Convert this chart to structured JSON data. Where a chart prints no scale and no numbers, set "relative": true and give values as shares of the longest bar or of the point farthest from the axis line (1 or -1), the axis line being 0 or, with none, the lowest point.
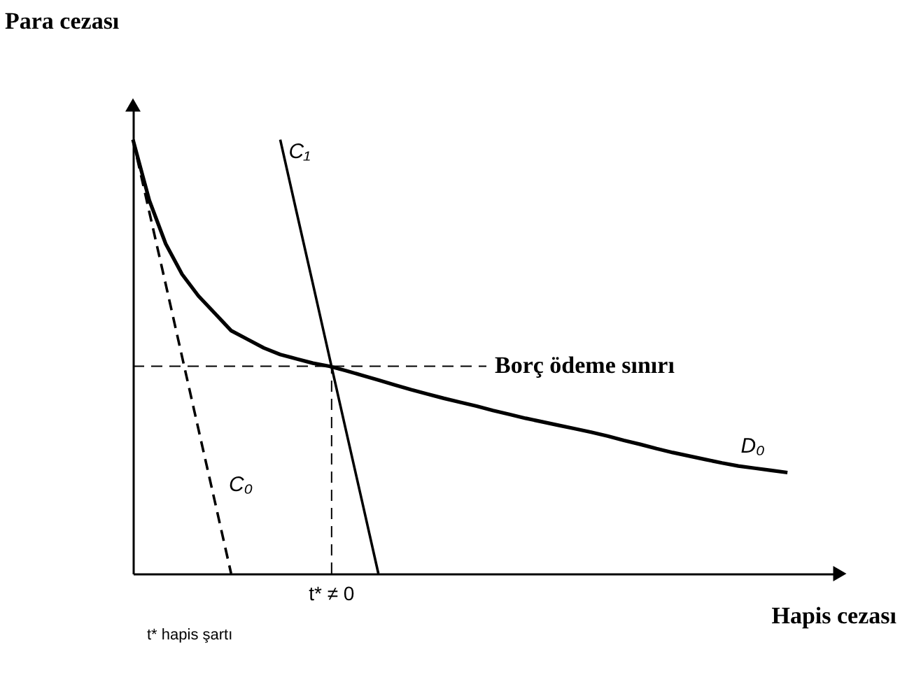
{
  "chart_data": {
    "type": "line",
    "relative": true,
    "xlabel": "Hapis cezası",
    "ylabel": "Para cezası",
    "legend": false,
    "marker": "none",
    "categories": [
      null,
      null,
      null,
      null,
      null,
      null,
      null,
      null,
      null,
      null,
      null,
      null,
      null,
      null,
      null,
      null,
      null,
      null,
      null,
      null,
      null,
      null,
      null,
      null,
      null,
      null,
      null,
      null,
      null,
      null,
      null,
      null,
      null,
      null,
      null,
      null,
      null,
      null,
      null,
      null,
      null
    ],
    "series": [
      {
        "name": "D₀",
        "color": "#000000",
        "line_style": "solid",
        "values": [
          1,
          0.86,
          0.76,
          0.69,
          0.64,
          0.6,
          0.56,
          0.54,
          0.52,
          0.505,
          0.495,
          0.485,
          0.478,
          0.468,
          0.457,
          0.446,
          0.435,
          0.424,
          0.414,
          0.404,
          0.395,
          0.386,
          0.376,
          0.367,
          0.358,
          0.35,
          0.342,
          0.334,
          0.326,
          0.317,
          0.307,
          0.298,
          0.288,
          0.279,
          0.271,
          0.263,
          0.255,
          0.248,
          0.243,
          0.238,
          0.233
        ]
      },
      {
        "name": "C₀",
        "color": "#000000",
        "line_style": "dashed",
        "values": [
          1,
          0.833,
          0.667,
          0.5,
          0.333,
          0.167,
          0,
          null,
          null,
          null,
          null,
          null,
          null,
          null,
          null,
          null,
          null,
          null,
          null,
          null,
          null,
          null,
          null,
          null,
          null,
          null,
          null,
          null,
          null,
          null,
          null,
          null,
          null,
          null,
          null,
          null,
          null,
          null,
          null,
          null,
          null
        ]
      },
      {
        "name": "C₁",
        "color": "#000000",
        "line_style": "solid",
        "values": [
          null,
          null,
          null,
          null,
          null,
          null,
          null,
          null,
          null,
          1,
          0.833,
          0.667,
          0.5,
          0.333,
          0.167,
          0,
          null,
          null,
          null,
          null,
          null,
          null,
          null,
          null,
          null,
          null,
          null,
          null,
          null,
          null,
          null,
          null,
          null,
          null,
          null,
          null,
          null,
          null,
          null,
          null,
          null
        ]
      }
    ],
    "ref_lines": [
      {
        "axis": "y",
        "value": 0.478,
        "label": "Borç ödeme sınırı",
        "line_style": "dashed"
      }
    ],
    "annotations": [
      "t* ≠ 0",
      "t* hapis şartı"
    ]
  }
}
